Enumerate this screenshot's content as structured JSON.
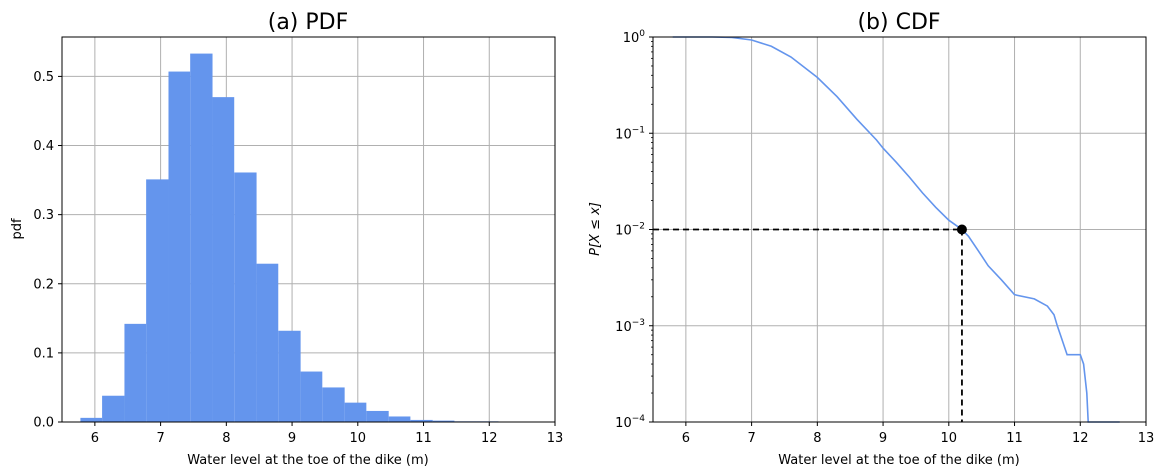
{
  "chart_data": [
    {
      "type": "bar",
      "title": "(a) PDF",
      "xlabel": "Water level at the toe of the dike (m)",
      "ylabel": "pdf",
      "xlim": [
        5.5,
        13
      ],
      "ylim": [
        0,
        0.557
      ],
      "grid": true,
      "xticks": [
        "6",
        "7",
        "8",
        "9",
        "10",
        "11",
        "12",
        "13"
      ],
      "yticks": [
        "0.0",
        "0.1",
        "0.2",
        "0.3",
        "0.4",
        "0.5"
      ],
      "color": "#6495ED",
      "bins": [
        {
          "x0": 5.78,
          "x1": 6.11,
          "value": 0.006
        },
        {
          "x0": 6.11,
          "x1": 6.45,
          "value": 0.038
        },
        {
          "x0": 6.45,
          "x1": 6.78,
          "value": 0.142
        },
        {
          "x0": 6.78,
          "x1": 7.12,
          "value": 0.351
        },
        {
          "x0": 7.12,
          "x1": 7.45,
          "value": 0.507
        },
        {
          "x0": 7.45,
          "x1": 7.79,
          "value": 0.533
        },
        {
          "x0": 7.79,
          "x1": 8.12,
          "value": 0.47
        },
        {
          "x0": 8.12,
          "x1": 8.46,
          "value": 0.361
        },
        {
          "x0": 8.46,
          "x1": 8.79,
          "value": 0.229
        },
        {
          "x0": 8.79,
          "x1": 9.13,
          "value": 0.132
        },
        {
          "x0": 9.13,
          "x1": 9.46,
          "value": 0.073
        },
        {
          "x0": 9.46,
          "x1": 9.8,
          "value": 0.05
        },
        {
          "x0": 9.8,
          "x1": 10.13,
          "value": 0.028
        },
        {
          "x0": 10.13,
          "x1": 10.47,
          "value": 0.016
        },
        {
          "x0": 10.47,
          "x1": 10.8,
          "value": 0.008
        },
        {
          "x0": 10.8,
          "x1": 11.14,
          "value": 0.003
        },
        {
          "x0": 11.14,
          "x1": 11.47,
          "value": 0.002
        },
        {
          "x0": 11.47,
          "x1": 11.81,
          "value": 0.001
        },
        {
          "x0": 11.81,
          "x1": 12.14,
          "value": 0.001
        },
        {
          "x0": 12.14,
          "x1": 12.48,
          "value": 0.0005
        }
      ]
    },
    {
      "type": "line",
      "title": "(b) CDF",
      "xlabel": "Water level at the toe of the dike (m)",
      "ylabel": "P[X ≤ x]",
      "xlim": [
        5.5,
        13
      ],
      "ylim": [
        0.0001,
        1
      ],
      "yscale": "log",
      "grid": true,
      "xticks": [
        "6",
        "7",
        "8",
        "9",
        "10",
        "11",
        "12",
        "13"
      ],
      "yticks": [
        {
          "base": "10",
          "exp": "−4",
          "value": 0.0001
        },
        {
          "base": "10",
          "exp": "−3",
          "value": 0.001
        },
        {
          "base": "10",
          "exp": "−2",
          "value": 0.01
        },
        {
          "base": "10",
          "exp": "−1",
          "value": 0.1
        },
        {
          "base": "10",
          "exp": "0",
          "value": 1
        }
      ],
      "color": "#6495ED",
      "series": [
        {
          "x": [
            5.8,
            6.4,
            6.7,
            7.0,
            7.3,
            7.6,
            8.0,
            8.3,
            8.6,
            8.9,
            9.0,
            9.2,
            9.4,
            9.6,
            9.8,
            10.0,
            10.2,
            10.3,
            10.45,
            10.6,
            10.8,
            11.0,
            11.3,
            11.5,
            11.6,
            11.65,
            11.7,
            11.8,
            12.0,
            12.05,
            12.1,
            12.12,
            12.6
          ],
          "y": [
            1.0,
            0.999,
            0.99,
            0.93,
            0.8,
            0.62,
            0.38,
            0.24,
            0.14,
            0.085,
            0.07,
            0.05,
            0.035,
            0.024,
            0.017,
            0.0125,
            0.01,
            0.0085,
            0.006,
            0.0042,
            0.003,
            0.0021,
            0.0019,
            0.0016,
            0.0013,
            0.001,
            0.0008,
            0.0005,
            0.0005,
            0.0004,
            0.0002,
            0.0001,
            0.0001
          ]
        }
      ],
      "marker": {
        "x": 10.2,
        "y": 0.01
      },
      "reference_lines": {
        "x": 10.2,
        "y": 0.01,
        "style": "dashed",
        "color": "#000000"
      }
    }
  ]
}
